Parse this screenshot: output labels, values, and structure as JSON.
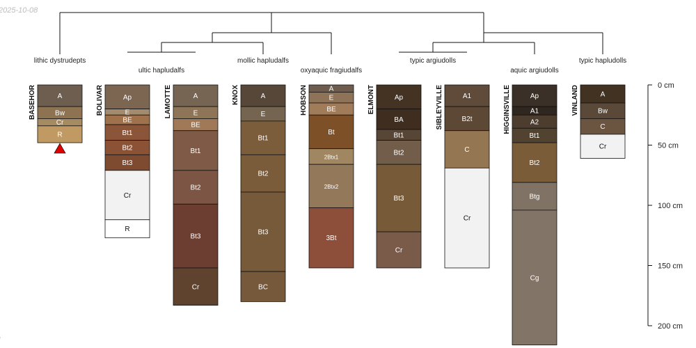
{
  "stamp_date": "2025-10-08",
  "stamp_corner": "l",
  "depth_scale": {
    "unit": "cm",
    "ticks": [
      0,
      50,
      100,
      150,
      200
    ],
    "tick_labels": [
      "0 cm",
      "50 cm",
      "100 cm",
      "150 cm",
      "200 cm"
    ]
  },
  "taxa": [
    "lithic dystrudepts",
    "ultic hapludalfs",
    "mollic hapludalfs",
    "oxyaquic fragiudalfs",
    "typic argiudolls",
    "aquic argiudolls",
    "typic hapludolls"
  ],
  "profiles": [
    {
      "name": "BASEHOR",
      "taxon": "lithic dystrudepts",
      "lithic_contact": true,
      "horizons": [
        {
          "name": "A",
          "top": 0,
          "bottom": 18,
          "color": "#6e5e50"
        },
        {
          "name": "Bw",
          "top": 18,
          "bottom": 28,
          "color": "#8d7352"
        },
        {
          "name": "Cr",
          "top": 28,
          "bottom": 34,
          "color": "#a68a62"
        },
        {
          "name": "R",
          "top": 34,
          "bottom": 48,
          "color": "#c09a62"
        }
      ]
    },
    {
      "name": "BOLIVAR",
      "taxon": "ultic hapludalfs",
      "lithic_contact": false,
      "horizons": [
        {
          "name": "Ap",
          "top": 0,
          "bottom": 20,
          "color": "#7c6652"
        },
        {
          "name": "E",
          "top": 20,
          "bottom": 25,
          "color": "#a58b6e"
        },
        {
          "name": "BE",
          "top": 25,
          "bottom": 33,
          "color": "#a0724c"
        },
        {
          "name": "Bt1",
          "top": 33,
          "bottom": 46,
          "color": "#8a5538"
        },
        {
          "name": "Bt2",
          "top": 46,
          "bottom": 58,
          "color": "#8c5235"
        },
        {
          "name": "Bt3",
          "top": 58,
          "bottom": 71,
          "color": "#7e4a30"
        },
        {
          "name": "Cr",
          "top": 71,
          "bottom": 112,
          "color": "#f2f2f2"
        },
        {
          "name": "R",
          "top": 112,
          "bottom": 127,
          "color": "#ffffff"
        }
      ]
    },
    {
      "name": "LAMOTTE",
      "taxon": "ultic hapludalfs",
      "lithic_contact": false,
      "horizons": [
        {
          "name": "A",
          "top": 0,
          "bottom": 18,
          "color": "#766553"
        },
        {
          "name": "E",
          "top": 18,
          "bottom": 28,
          "color": "#8f7558"
        },
        {
          "name": "BE",
          "top": 28,
          "bottom": 38,
          "color": "#a07a58"
        },
        {
          "name": "Bt1",
          "top": 38,
          "bottom": 71,
          "color": "#7e5a47"
        },
        {
          "name": "Bt2",
          "top": 71,
          "bottom": 99,
          "color": "#7c5545"
        },
        {
          "name": "Bt3",
          "top": 99,
          "bottom": 152,
          "color": "#6b3e31"
        },
        {
          "name": "Cr",
          "top": 152,
          "bottom": 183,
          "color": "#5f432e"
        }
      ]
    },
    {
      "name": "KNOX",
      "taxon": "mollic hapludalfs",
      "lithic_contact": false,
      "horizons": [
        {
          "name": "A",
          "top": 0,
          "bottom": 18,
          "color": "#574739"
        },
        {
          "name": "E",
          "top": 18,
          "bottom": 30,
          "color": "#756450"
        },
        {
          "name": "Bt1",
          "top": 30,
          "bottom": 58,
          "color": "#7b5c3b"
        },
        {
          "name": "Bt2",
          "top": 58,
          "bottom": 89,
          "color": "#7a5c3a"
        },
        {
          "name": "Bt3",
          "top": 89,
          "bottom": 155,
          "color": "#775a39"
        },
        {
          "name": "BC",
          "top": 155,
          "bottom": 180,
          "color": "#76593a"
        }
      ]
    },
    {
      "name": "HOBSON",
      "taxon": "oxyaquic fragiudalfs",
      "lithic_contact": false,
      "horizons": [
        {
          "name": "A",
          "top": 0,
          "bottom": 6,
          "color": "#6e5c4e"
        },
        {
          "name": "E",
          "top": 6,
          "bottom": 15,
          "color": "#8f7358"
        },
        {
          "name": "BE",
          "top": 15,
          "bottom": 25,
          "color": "#a07c5a"
        },
        {
          "name": "Bt",
          "top": 25,
          "bottom": 53,
          "color": "#7e5028"
        },
        {
          "name": "2Btx1",
          "top": 53,
          "bottom": 66,
          "color": "#a08762"
        },
        {
          "name": "2Btx2",
          "top": 66,
          "bottom": 102,
          "color": "#94785a"
        },
        {
          "name": "3Bt",
          "top": 102,
          "bottom": 152,
          "color": "#8d4e3a"
        }
      ]
    },
    {
      "name": "ELMONT",
      "taxon": "typic argiudolls",
      "lithic_contact": false,
      "horizons": [
        {
          "name": "Ap",
          "top": 0,
          "bottom": 20,
          "color": "#443222"
        },
        {
          "name": "BA",
          "top": 20,
          "bottom": 37,
          "color": "#3f2e1f"
        },
        {
          "name": "Bt1",
          "top": 37,
          "bottom": 46,
          "color": "#574535"
        },
        {
          "name": "Bt2",
          "top": 46,
          "bottom": 66,
          "color": "#725c4a"
        },
        {
          "name": "Bt3",
          "top": 66,
          "bottom": 122,
          "color": "#775a38"
        },
        {
          "name": "Cr",
          "top": 122,
          "bottom": 152,
          "color": "#7a5b4a"
        }
      ]
    },
    {
      "name": "SIBLEYVILLE",
      "taxon": "typic argiudolls",
      "lithic_contact": false,
      "horizons": [
        {
          "name": "A1",
          "top": 0,
          "bottom": 18,
          "color": "#604b3b"
        },
        {
          "name": "B2t",
          "top": 18,
          "bottom": 38,
          "color": "#5c4834"
        },
        {
          "name": "C",
          "top": 38,
          "bottom": 69,
          "color": "#957652"
        },
        {
          "name": "Cr",
          "top": 69,
          "bottom": 152,
          "color": "#f2f2f2"
        }
      ]
    },
    {
      "name": "HIGGINSVILLE",
      "taxon": "aquic argiudolls",
      "lithic_contact": false,
      "horizons": [
        {
          "name": "Ap",
          "top": 0,
          "bottom": 18,
          "color": "#3a3028"
        },
        {
          "name": "A1",
          "top": 18,
          "bottom": 25,
          "color": "#302620"
        },
        {
          "name": "A2",
          "top": 25,
          "bottom": 36,
          "color": "#4c3d2f"
        },
        {
          "name": "Bt1",
          "top": 36,
          "bottom": 48,
          "color": "#524230"
        },
        {
          "name": "Bt2",
          "top": 48,
          "bottom": 81,
          "color": "#7b5c38"
        },
        {
          "name": "Btg",
          "top": 81,
          "bottom": 104,
          "color": "#807366"
        },
        {
          "name": "Cg",
          "top": 104,
          "bottom": 216,
          "color": "#827467"
        }
      ]
    },
    {
      "name": "VINLAND",
      "taxon": "typic hapludolls",
      "lithic_contact": false,
      "horizons": [
        {
          "name": "A",
          "top": 0,
          "bottom": 15,
          "color": "#423222"
        },
        {
          "name": "Bw",
          "top": 15,
          "bottom": 28,
          "color": "#5a4838"
        },
        {
          "name": "C",
          "top": 28,
          "bottom": 41,
          "color": "#6b5440"
        },
        {
          "name": "Cr",
          "top": 41,
          "bottom": 61,
          "color": "#f2f2f2"
        }
      ]
    }
  ]
}
